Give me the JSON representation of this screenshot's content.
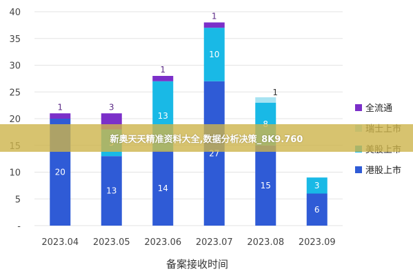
{
  "chart_data": {
    "type": "bar",
    "stacked": true,
    "categories": [
      "2023.04",
      "2023.05",
      "2023.06",
      "2023.07",
      "2023.08",
      "2023.09"
    ],
    "series": [
      {
        "name": "港股上市",
        "color": "#2f5bd6",
        "values": [
          20,
          13,
          14,
          27,
          15,
          6
        ]
      },
      {
        "name": "美股上市",
        "color": "#19b9e6",
        "values": [
          0,
          5,
          13,
          10,
          8,
          3
        ]
      },
      {
        "name": "瑞士上市",
        "color": "#a7e3f2",
        "values": [
          0,
          0,
          0,
          0,
          1,
          0
        ]
      },
      {
        "name": "全流通",
        "color": "#7b2fc9",
        "values": [
          1,
          3,
          1,
          1,
          0,
          0
        ]
      }
    ],
    "segment_labels": [
      [
        "20",
        "",
        "",
        "1"
      ],
      [
        "13",
        "5",
        "",
        "3"
      ],
      [
        "14",
        "13",
        "",
        "1"
      ],
      [
        "27",
        "10",
        "",
        "1"
      ],
      [
        "15",
        "8",
        "1",
        ""
      ],
      [
        "6",
        "3",
        "",
        ""
      ]
    ],
    "xlabel": "备案接收时间",
    "ylabel": "",
    "ylim": [
      0,
      40
    ],
    "yticks": [
      0,
      5,
      10,
      15,
      20,
      25,
      30,
      35,
      40
    ],
    "ytick_labels": [
      "-",
      "5",
      "10",
      "15",
      "20",
      "25",
      "30",
      "35",
      "40"
    ],
    "grid": true,
    "legend_position": "right",
    "legend_order": [
      "全流通",
      "瑞士上市",
      "美股上市",
      "港股上市"
    ]
  },
  "banner": {
    "text": "新奥天天精准资料大全,数据分析决策_8K9.760"
  }
}
